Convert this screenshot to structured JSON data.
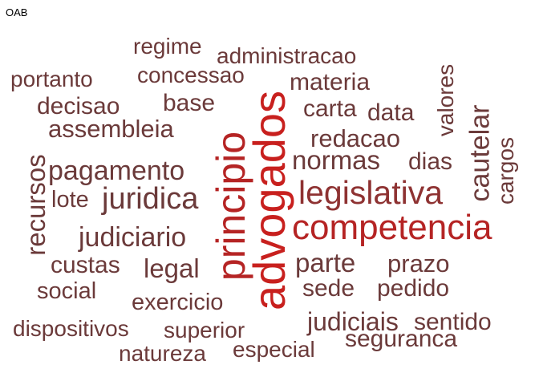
{
  "title": "OAB",
  "colors": {
    "dark": "#6b3a3a",
    "mid": "#8e3232",
    "red": "#b52424",
    "bright": "#c8201e"
  },
  "words": [
    {
      "text": "regime",
      "color": "dark"
    },
    {
      "text": "administracao",
      "color": "dark"
    },
    {
      "text": "portanto",
      "color": "dark"
    },
    {
      "text": "concessao",
      "color": "dark"
    },
    {
      "text": "materia",
      "color": "dark"
    },
    {
      "text": "base",
      "color": "dark"
    },
    {
      "text": "decisao",
      "color": "dark"
    },
    {
      "text": "carta",
      "color": "dark"
    },
    {
      "text": "data",
      "color": "dark"
    },
    {
      "text": "assembleia",
      "color": "dark"
    },
    {
      "text": "redacao",
      "color": "dark"
    },
    {
      "text": "normas",
      "color": "dark"
    },
    {
      "text": "dias",
      "color": "dark"
    },
    {
      "text": "pagamento",
      "color": "dark"
    },
    {
      "text": "lote",
      "color": "dark"
    },
    {
      "text": "juridica",
      "color": "dark"
    },
    {
      "text": "legislativa",
      "color": "mid"
    },
    {
      "text": "competencia",
      "color": "red"
    },
    {
      "text": "judiciario",
      "color": "dark"
    },
    {
      "text": "custas",
      "color": "dark"
    },
    {
      "text": "legal",
      "color": "dark"
    },
    {
      "text": "parte",
      "color": "dark"
    },
    {
      "text": "prazo",
      "color": "dark"
    },
    {
      "text": "social",
      "color": "dark"
    },
    {
      "text": "sede",
      "color": "dark"
    },
    {
      "text": "pedido",
      "color": "dark"
    },
    {
      "text": "exercicio",
      "color": "dark"
    },
    {
      "text": "dispositivos",
      "color": "dark"
    },
    {
      "text": "superior",
      "color": "dark"
    },
    {
      "text": "judiciais",
      "color": "dark"
    },
    {
      "text": "sentido",
      "color": "dark"
    },
    {
      "text": "seguranca",
      "color": "dark"
    },
    {
      "text": "natureza",
      "color": "dark"
    },
    {
      "text": "especial",
      "color": "dark"
    },
    {
      "text": "recursos",
      "color": "dark"
    },
    {
      "text": "principio",
      "color": "red"
    },
    {
      "text": "advogados",
      "color": "bright"
    },
    {
      "text": "valores",
      "color": "dark"
    },
    {
      "text": "cautelar",
      "color": "dark"
    },
    {
      "text": "cargos",
      "color": "dark"
    }
  ]
}
